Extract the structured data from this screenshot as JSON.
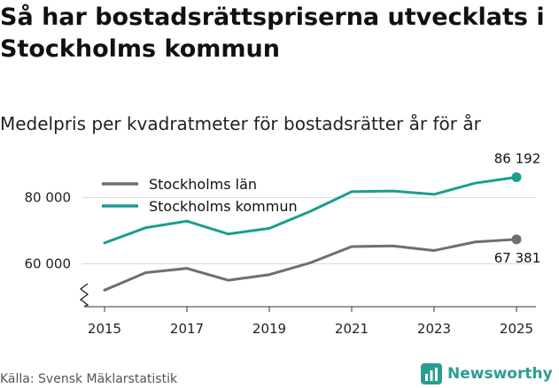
{
  "title": "Så har bostadsrättspriserna utvecklats i Stockholms kommun",
  "subtitle": "Medelpris per kvadratmeter för bostadsrätter år för år",
  "source": "Källa: Svensk Mäklarstatistik",
  "brand": {
    "name": "Newsworthy"
  },
  "chart_data": {
    "type": "line",
    "x": [
      2015,
      2016,
      2017,
      2018,
      2019,
      2020,
      2021,
      2022,
      2023,
      2024,
      2025
    ],
    "x_ticks": [
      "2015",
      "2017",
      "2019",
      "2021",
      "2023",
      "2025"
    ],
    "y_ticks": [
      "60 000",
      "80 000"
    ],
    "y_tick_values": [
      60000,
      80000
    ],
    "ylim": [
      47000,
      89000
    ],
    "xlim": [
      2015,
      2025
    ],
    "grid": "horizontal",
    "legend_position": "top-left",
    "series": [
      {
        "name": "Stockholms län",
        "color": "#6e6e73",
        "values": [
          52000,
          57300,
          58600,
          55000,
          56700,
          60300,
          65200,
          65400,
          64000,
          66600,
          67381
        ],
        "end_label": "67 381"
      },
      {
        "name": "Stockholms kommun",
        "color": "#1a9e8f",
        "values": [
          66300,
          70900,
          72900,
          69000,
          70700,
          75900,
          81800,
          82000,
          81000,
          84400,
          86192
        ],
        "end_label": "86 192"
      }
    ]
  }
}
